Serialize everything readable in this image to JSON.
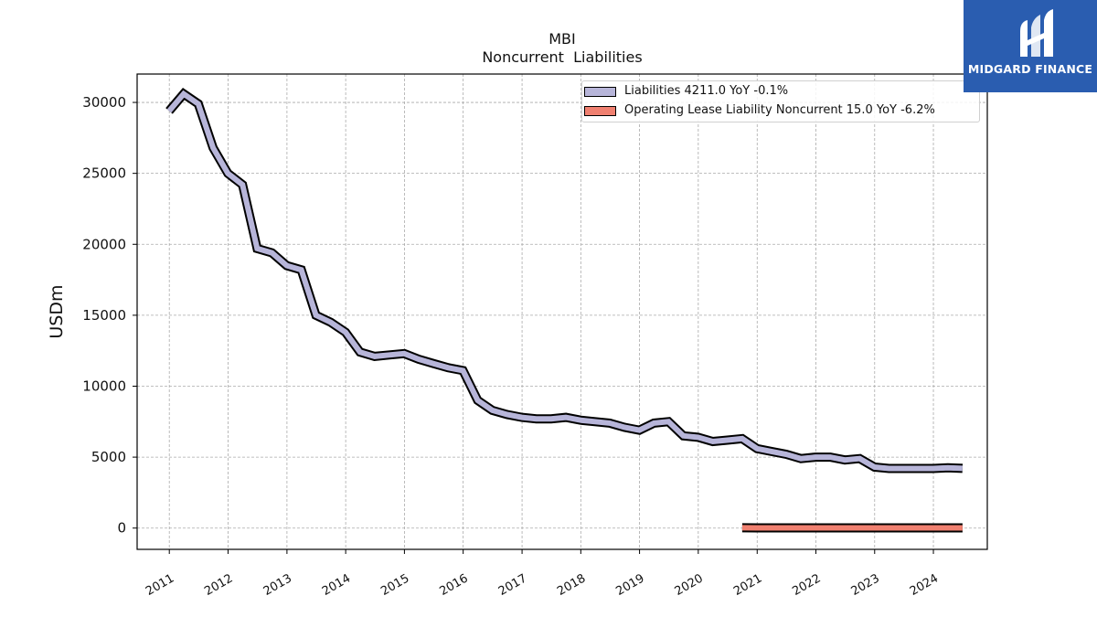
{
  "chart_data": {
    "type": "line",
    "title": "MBI",
    "subtitle": "Noncurrent  Liabilities",
    "ylabel": "USDm",
    "xlabel": "",
    "ylim": [
      -1500,
      32000
    ],
    "yticks": [
      0,
      5000,
      10000,
      15000,
      20000,
      25000,
      30000
    ],
    "ytick_labels": [
      "0",
      "5000",
      "10000",
      "15000",
      "20000",
      "25000",
      "30000"
    ],
    "xtick_labels": [
      "2011",
      "2012",
      "2013",
      "2014",
      "2015",
      "2016",
      "2017",
      "2018",
      "2019",
      "2020",
      "2021",
      "2022",
      "2023",
      "2024"
    ],
    "grid": true,
    "legend_position": "top-right",
    "series": [
      {
        "name": "Liabilities  4211.0 YoY -0.1%",
        "color": "#b7b5d9",
        "x": [
          "2010-12-31",
          "2011-03-31",
          "2011-06-30",
          "2011-09-30",
          "2011-12-31",
          "2012-03-31",
          "2012-06-30",
          "2012-09-30",
          "2012-12-31",
          "2013-03-31",
          "2013-06-30",
          "2013-09-30",
          "2013-12-31",
          "2014-03-31",
          "2014-06-30",
          "2014-09-30",
          "2014-12-31",
          "2015-03-31",
          "2015-06-30",
          "2015-09-30",
          "2015-12-31",
          "2016-03-31",
          "2016-06-30",
          "2016-09-30",
          "2016-12-31",
          "2017-03-31",
          "2017-06-30",
          "2017-09-30",
          "2017-12-31",
          "2018-03-31",
          "2018-06-30",
          "2018-09-30",
          "2018-12-31",
          "2019-03-31",
          "2019-06-30",
          "2019-09-30",
          "2019-12-31",
          "2020-03-31",
          "2020-06-30",
          "2020-09-30",
          "2020-12-31",
          "2021-03-31",
          "2021-06-30",
          "2021-09-30",
          "2021-12-31",
          "2022-03-31",
          "2022-06-30",
          "2022-09-30",
          "2022-12-31",
          "2023-03-31",
          "2023-06-30",
          "2023-09-30",
          "2023-12-31",
          "2024-03-31",
          "2024-06-30"
        ],
        "values": [
          29400,
          30600,
          29900,
          26800,
          25000,
          24200,
          19700,
          19400,
          18500,
          18200,
          15000,
          14500,
          13800,
          12400,
          12100,
          12200,
          12300,
          11900,
          11600,
          11300,
          11100,
          9000,
          8300,
          8000,
          7800,
          7700,
          7700,
          7800,
          7600,
          7500,
          7400,
          7100,
          6900,
          7400,
          7500,
          6500,
          6400,
          6100,
          6200,
          6300,
          5600,
          5400,
          5200,
          4900,
          5000,
          5000,
          4800,
          4900,
          4300,
          4200,
          4200,
          4200,
          4200,
          4250,
          4211
        ]
      },
      {
        "name": "Operating Lease Liability Noncurrent  15.0 YoY -6.2%",
        "color": "#f08070",
        "x": [
          "2020-09-30",
          "2020-12-31",
          "2021-03-31",
          "2021-06-30",
          "2021-09-30",
          "2021-12-31",
          "2022-03-31",
          "2022-06-30",
          "2022-09-30",
          "2022-12-31",
          "2023-03-31",
          "2023-06-30",
          "2023-09-30",
          "2023-12-31",
          "2024-03-31",
          "2024-06-30"
        ],
        "values": [
          18,
          17,
          17,
          17,
          16,
          16,
          16,
          16,
          16,
          16,
          16,
          16,
          15,
          15,
          15,
          15
        ]
      }
    ]
  },
  "logo": {
    "text": "MIDGARD FINANCE",
    "background": "#2a5db0"
  }
}
